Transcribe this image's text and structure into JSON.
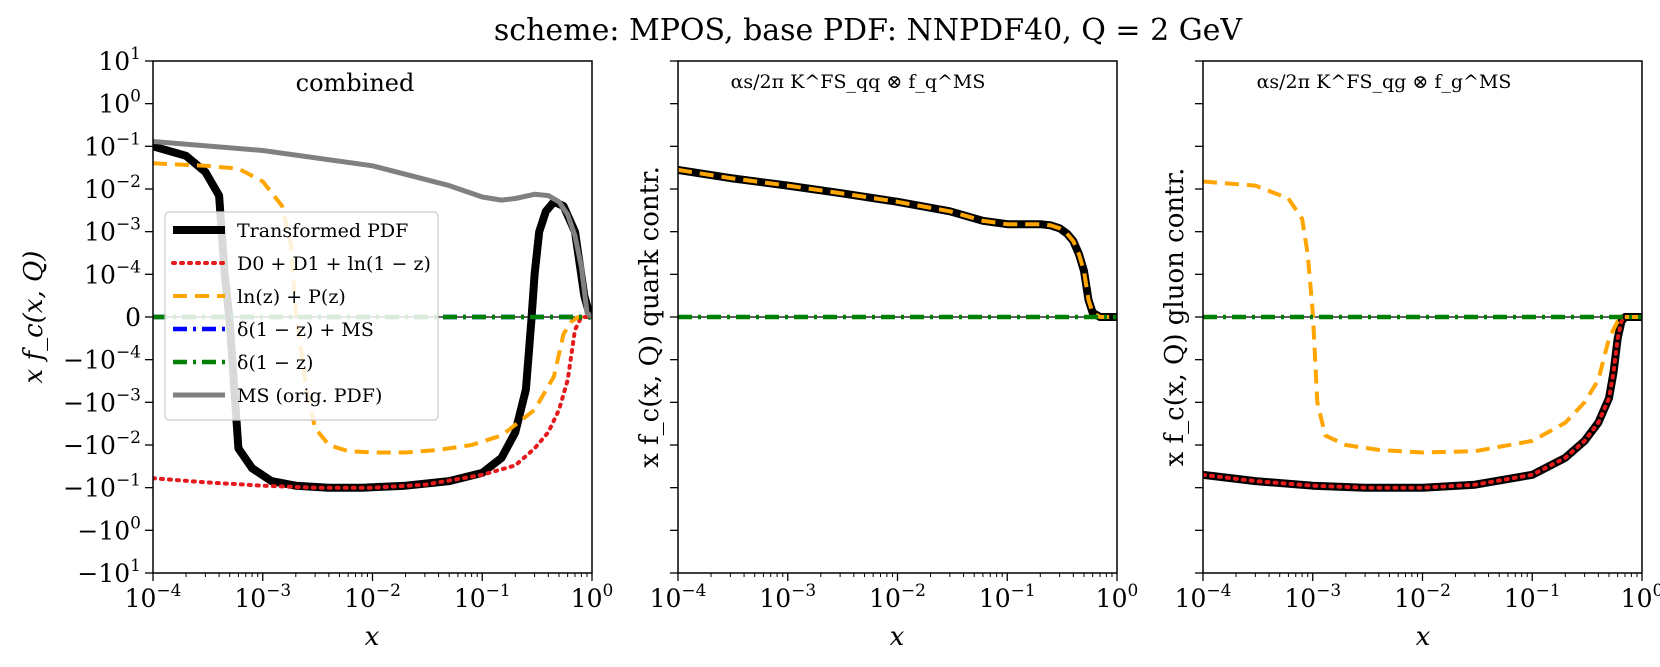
{
  "figure": {
    "suptitle": "scheme: MPOS, base PDF: NNPDF40, Q = 2 GeV"
  },
  "colors": {
    "transformed": "#000000",
    "d01": "#e41a1c",
    "lnzP": "#ffa500",
    "deltaMS": "#0000ff",
    "delta": "#008000",
    "ms": "#808080"
  },
  "chart_data": [
    {
      "type": "line",
      "title": "combined",
      "xlabel": "x",
      "ylabel": "x f_c(x, Q)",
      "xscale": "log",
      "yscale": "symlog",
      "xlim": [
        0.0001,
        1
      ],
      "x_ticks": [
        "10^-4",
        "10^-3",
        "10^-2",
        "10^-1",
        "10^0"
      ],
      "y_ticks": [
        "10^1",
        "10^0",
        "10^-1",
        "10^-2",
        "10^-3",
        "10^-4",
        "0",
        "-10^-4",
        "-10^-3",
        "-10^-2",
        "-10^-1",
        "-10^0",
        "-10^1"
      ],
      "legend": {
        "placement": "center-left",
        "entries": [
          "Transformed PDF",
          "D0 + D1 + ln(1 − z)",
          "ln(z) + P(z)",
          "δ(1 − z) + MS",
          "δ(1 − z)",
          "MS (orig. PDF)"
        ]
      },
      "series": [
        {
          "name": "Transformed PDF",
          "style": "solid-thick",
          "color_key": "transformed",
          "x": [
            0.0001,
            0.0002,
            0.0003,
            0.0004,
            0.00045,
            0.0005,
            0.0006,
            0.0008,
            0.0012,
            0.002,
            0.004,
            0.008,
            0.02,
            0.05,
            0.1,
            0.15,
            0.2,
            0.25,
            0.28,
            0.3,
            0.33,
            0.38,
            0.45,
            0.55,
            0.7,
            0.85,
            0.95,
            1.0
          ],
          "y": [
            0.1,
            0.06,
            0.025,
            0.007,
            0.0001,
            -1e-05,
            -0.012,
            -0.035,
            -0.07,
            -0.09,
            -0.1,
            -0.1,
            -0.09,
            -0.07,
            -0.045,
            -0.02,
            -0.005,
            -0.0005,
            -1e-05,
            0.0001,
            0.001,
            0.003,
            0.005,
            0.004,
            0.001,
            5e-05,
            5e-06,
            0
          ]
        },
        {
          "name": "D0 + D1 + ln(1 − z)",
          "style": "dotted",
          "color_key": "d01",
          "x": [
            0.0001,
            0.0003,
            0.001,
            0.003,
            0.006,
            0.01,
            0.03,
            0.1,
            0.2,
            0.3,
            0.4,
            0.5,
            0.6,
            0.7,
            0.8,
            0.9,
            1.0
          ],
          "y": [
            -0.06,
            -0.075,
            -0.09,
            -0.1,
            -0.1,
            -0.1,
            -0.085,
            -0.05,
            -0.03,
            -0.012,
            -0.005,
            -0.0015,
            -0.0003,
            -3e-05,
            0,
            0,
            0
          ]
        },
        {
          "name": "ln(z) + P(z)",
          "style": "dashed",
          "color_key": "lnzP",
          "x": [
            0.0001,
            0.0003,
            0.0006,
            0.001,
            0.0015,
            0.0018,
            0.002,
            0.0025,
            0.003,
            0.004,
            0.006,
            0.01,
            0.02,
            0.04,
            0.08,
            0.15,
            0.3,
            0.45,
            0.55,
            0.65,
            0.75,
            0.85,
            0.95,
            1.0
          ],
          "y": [
            0.04,
            0.035,
            0.03,
            0.015,
            0.004,
            0.0005,
            1e-05,
            -0.0005,
            -0.004,
            -0.01,
            -0.014,
            -0.015,
            -0.015,
            -0.013,
            -0.01,
            -0.006,
            -0.0015,
            -0.00025,
            -4e-05,
            -1e-05,
            0,
            0,
            0,
            0
          ]
        },
        {
          "name": "δ(1 − z) + MS",
          "style": "dashdot",
          "color_key": "deltaMS",
          "x": [
            0.0001,
            1.0
          ],
          "y": [
            0,
            0
          ]
        },
        {
          "name": "δ(1 − z)",
          "style": "dashdot",
          "color_key": "delta",
          "x": [
            0.0001,
            1.0
          ],
          "y": [
            0,
            0
          ]
        },
        {
          "name": "MS (orig. PDF)",
          "style": "solid",
          "color_key": "ms",
          "x": [
            0.0001,
            0.001,
            0.01,
            0.05,
            0.1,
            0.15,
            0.2,
            0.3,
            0.4,
            0.5,
            0.6,
            0.7,
            0.8,
            0.9,
            1.0
          ],
          "y": [
            0.13,
            0.08,
            0.035,
            0.012,
            0.0065,
            0.0055,
            0.006,
            0.0075,
            0.007,
            0.005,
            0.0025,
            0.0008,
            0.00015,
            1e-05,
            0
          ]
        }
      ]
    },
    {
      "type": "line",
      "title": "αs/2π K^FS_qq ⊗ f_q^MS",
      "xlabel": "x",
      "ylabel": "x f_c(x, Q) quark contr.",
      "xscale": "log",
      "yscale": "symlog",
      "xlim": [
        0.0001,
        1
      ],
      "x_ticks": [
        "10^-4",
        "10^-3",
        "10^-2",
        "10^-1",
        "10^0"
      ],
      "series": [
        {
          "name": "Transformed PDF",
          "style": "solid-thick",
          "color_key": "transformed",
          "x": [
            0.0001,
            0.0003,
            0.001,
            0.003,
            0.01,
            0.03,
            0.06,
            0.1,
            0.15,
            0.2,
            0.25,
            0.3,
            0.35,
            0.4,
            0.45,
            0.5,
            0.55,
            0.6,
            0.7,
            0.8,
            0.9,
            1.0
          ],
          "y": [
            0.028,
            0.018,
            0.012,
            0.008,
            0.005,
            0.003,
            0.0018,
            0.0015,
            0.0015,
            0.0015,
            0.0014,
            0.0012,
            0.0009,
            0.0006,
            0.0003,
            0.00012,
            4e-05,
            1e-05,
            0,
            0,
            0,
            0
          ]
        },
        {
          "name": "ln(z) + P(z)",
          "style": "dashed",
          "color_key": "lnzP",
          "x": [
            0.0001,
            0.0003,
            0.001,
            0.003,
            0.01,
            0.03,
            0.06,
            0.1,
            0.15,
            0.2,
            0.25,
            0.3,
            0.35,
            0.4,
            0.45,
            0.5,
            0.55,
            0.6,
            0.7,
            0.8,
            0.9,
            1.0
          ],
          "y": [
            0.028,
            0.018,
            0.012,
            0.008,
            0.005,
            0.003,
            0.0018,
            0.0015,
            0.0015,
            0.0015,
            0.0014,
            0.0012,
            0.0009,
            0.0006,
            0.0003,
            0.00012,
            4e-05,
            1e-05,
            0,
            0,
            0,
            0
          ]
        },
        {
          "name": "δ(1 − z)",
          "style": "dashdot",
          "color_key": "delta",
          "x": [
            0.0001,
            1.0
          ],
          "y": [
            0,
            0
          ]
        }
      ]
    },
    {
      "type": "line",
      "title": "αs/2π K^FS_qg ⊗ f_g^MS",
      "xlabel": "x",
      "ylabel": "x f_c(x, Q) gluon contr.",
      "xscale": "log",
      "yscale": "symlog",
      "xlim": [
        0.0001,
        1
      ],
      "x_ticks": [
        "10^-4",
        "10^-3",
        "10^-2",
        "10^-1",
        "10^0"
      ],
      "series": [
        {
          "name": "Transformed PDF",
          "style": "solid-thick",
          "color_key": "transformed",
          "x": [
            0.0001,
            0.0003,
            0.001,
            0.003,
            0.01,
            0.03,
            0.1,
            0.2,
            0.3,
            0.4,
            0.5,
            0.55,
            0.6,
            0.65,
            0.7,
            0.75,
            0.8,
            1.0
          ],
          "y": [
            -0.05,
            -0.07,
            -0.09,
            -0.1,
            -0.1,
            -0.085,
            -0.05,
            -0.02,
            -0.008,
            -0.003,
            -0.0008,
            -0.0002,
            -5e-05,
            -1e-05,
            0,
            0,
            0,
            0
          ]
        },
        {
          "name": "D0 + D1 + ln(1 − z)",
          "style": "dotted",
          "color_key": "d01",
          "x": [
            0.0001,
            0.0003,
            0.001,
            0.003,
            0.01,
            0.03,
            0.1,
            0.2,
            0.3,
            0.4,
            0.5,
            0.55,
            0.6,
            0.65,
            0.7,
            0.75,
            0.8,
            1.0
          ],
          "y": [
            -0.05,
            -0.07,
            -0.09,
            -0.1,
            -0.1,
            -0.085,
            -0.05,
            -0.02,
            -0.008,
            -0.003,
            -0.0008,
            -0.0002,
            -5e-05,
            -1e-05,
            0,
            0,
            0,
            0
          ]
        },
        {
          "name": "ln(z) + P(z)",
          "style": "dashed",
          "color_key": "lnzP",
          "x": [
            0.0001,
            0.0003,
            0.0006,
            0.0008,
            0.0009,
            0.001,
            0.0011,
            0.0013,
            0.002,
            0.004,
            0.01,
            0.03,
            0.1,
            0.2,
            0.3,
            0.4,
            0.5,
            0.6,
            0.7,
            0.8,
            1.0
          ],
          "y": [
            0.015,
            0.012,
            0.006,
            0.002,
            0.0003,
            1e-05,
            -0.001,
            -0.006,
            -0.01,
            -0.013,
            -0.015,
            -0.014,
            -0.008,
            -0.003,
            -0.001,
            -0.0003,
            -5e-05,
            -1e-05,
            0,
            0,
            0
          ]
        },
        {
          "name": "δ(1 − z)",
          "style": "dashdot",
          "color_key": "delta",
          "x": [
            0.0001,
            1.0
          ],
          "y": [
            0,
            0
          ]
        }
      ]
    }
  ]
}
